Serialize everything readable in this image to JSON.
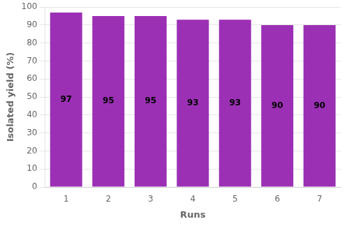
{
  "chart_data": {
    "type": "bar",
    "categories": [
      "1",
      "2",
      "3",
      "4",
      "5",
      "6",
      "7"
    ],
    "values": [
      97,
      95,
      95,
      93,
      93,
      90,
      90
    ],
    "color": "#9B30B5",
    "xlabel": "Runs",
    "ylabel": "Isolated yield (%)",
    "ylim": [
      0,
      100
    ],
    "yticks": [
      0,
      10,
      20,
      30,
      40,
      50,
      60,
      70,
      80,
      90,
      100
    ],
    "grid": true,
    "data_labels": true
  }
}
